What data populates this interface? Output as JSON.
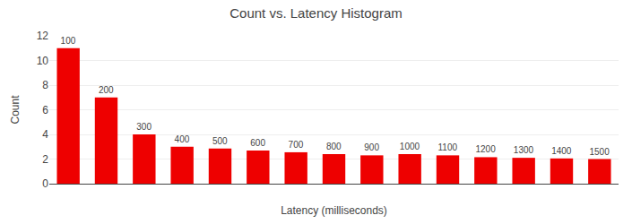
{
  "chart_data": {
    "type": "bar",
    "title": "Count vs. Latency Histogram",
    "xlabel": "Latency (milliseconds)",
    "ylabel": "Count",
    "categories": [
      100,
      200,
      300,
      400,
      500,
      600,
      700,
      800,
      900,
      1000,
      1100,
      1200,
      1300,
      1400,
      1500
    ],
    "values": [
      11,
      7,
      4,
      3,
      2.85,
      2.7,
      2.55,
      2.4,
      2.3,
      2.4,
      2.3,
      2.15,
      2.1,
      2.05,
      2.0
    ],
    "color": "#EE0000",
    "ylim": [
      0,
      12
    ],
    "yticks": [
      0,
      2,
      4,
      6,
      8,
      10,
      12
    ],
    "grid": true,
    "tick_labels": "y"
  }
}
